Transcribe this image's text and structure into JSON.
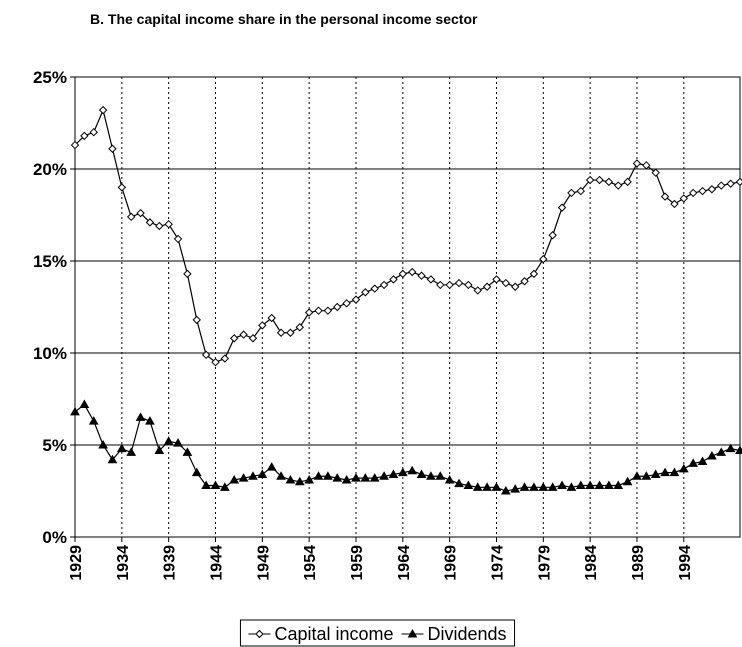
{
  "chart_data": {
    "type": "line",
    "title": "B. The capital income share in the personal income sector",
    "x": [
      1929,
      1930,
      1931,
      1932,
      1933,
      1934,
      1935,
      1936,
      1937,
      1938,
      1939,
      1940,
      1941,
      1942,
      1943,
      1944,
      1945,
      1946,
      1947,
      1948,
      1949,
      1950,
      1951,
      1952,
      1953,
      1954,
      1955,
      1956,
      1957,
      1958,
      1959,
      1960,
      1961,
      1962,
      1963,
      1964,
      1965,
      1966,
      1967,
      1968,
      1969,
      1970,
      1971,
      1972,
      1973,
      1974,
      1975,
      1976,
      1977,
      1978,
      1979,
      1980,
      1981,
      1982,
      1983,
      1984,
      1985,
      1986,
      1987,
      1988,
      1989,
      1990,
      1991,
      1992,
      1993,
      1994,
      1995,
      1996,
      1997,
      1998,
      1999,
      2000
    ],
    "series": [
      {
        "name": "Capital income",
        "color": "#000000",
        "marker": "diamond",
        "values": [
          21.3,
          21.8,
          22.0,
          23.2,
          21.1,
          19.0,
          17.4,
          17.6,
          17.1,
          16.9,
          17.0,
          16.2,
          14.3,
          11.8,
          9.9,
          9.5,
          9.7,
          10.8,
          11.0,
          10.8,
          11.5,
          11.9,
          11.1,
          11.1,
          11.4,
          12.2,
          12.3,
          12.3,
          12.5,
          12.7,
          12.9,
          13.3,
          13.5,
          13.7,
          14.0,
          14.3,
          14.4,
          14.2,
          14.0,
          13.7,
          13.7,
          13.8,
          13.7,
          13.4,
          13.6,
          14.0,
          13.8,
          13.6,
          13.9,
          14.3,
          15.1,
          16.4,
          17.9,
          18.7,
          18.8,
          19.4,
          19.4,
          19.3,
          19.1,
          19.3,
          20.3,
          20.2,
          19.8,
          18.5,
          18.1,
          18.4,
          18.7,
          18.8,
          18.9,
          19.1,
          19.2,
          19.3
        ]
      },
      {
        "name": "Dividends",
        "color": "#000000",
        "marker": "triangle",
        "values": [
          6.8,
          7.2,
          6.3,
          5.0,
          4.2,
          4.8,
          4.6,
          6.5,
          6.3,
          4.7,
          5.2,
          5.1,
          4.6,
          3.5,
          2.8,
          2.8,
          2.7,
          3.1,
          3.2,
          3.3,
          3.4,
          3.8,
          3.3,
          3.1,
          3.0,
          3.1,
          3.3,
          3.3,
          3.2,
          3.1,
          3.2,
          3.2,
          3.2,
          3.3,
          3.4,
          3.5,
          3.6,
          3.4,
          3.3,
          3.3,
          3.1,
          2.9,
          2.8,
          2.7,
          2.7,
          2.7,
          2.5,
          2.6,
          2.7,
          2.7,
          2.7,
          2.7,
          2.8,
          2.7,
          2.8,
          2.8,
          2.8,
          2.8,
          2.8,
          3.0,
          3.3,
          3.3,
          3.4,
          3.5,
          3.5,
          3.7,
          4.0,
          4.1,
          4.4,
          4.6,
          4.8,
          4.7
        ]
      }
    ],
    "xlim": [
      1929,
      2000
    ],
    "xticks": [
      1929,
      1934,
      1939,
      1944,
      1949,
      1954,
      1959,
      1964,
      1969,
      1974,
      1979,
      1984,
      1989,
      1994
    ],
    "ylim": [
      0,
      25
    ],
    "yticks": [
      {
        "value": 0,
        "label": "0%"
      },
      {
        "value": 5,
        "label": "5%"
      },
      {
        "value": 10,
        "label": "10%"
      },
      {
        "value": 15,
        "label": "15%"
      },
      {
        "value": 20,
        "label": "20%"
      },
      {
        "value": 25,
        "label": "25%"
      }
    ],
    "grid": true,
    "legend": "bottom"
  }
}
